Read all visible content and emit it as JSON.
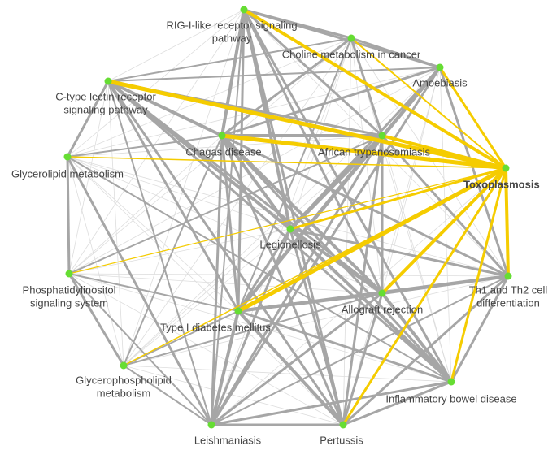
{
  "nodes": [
    {
      "label": [
        "RIG-I-like receptor signaling",
        "pathway"
      ]
    },
    {
      "label": [
        "Choline metabolism in cancer"
      ]
    },
    {
      "label": [
        "Amoebiasis"
      ]
    },
    {
      "label": [
        "C-type lectin receptor",
        "signaling pathway"
      ]
    },
    {
      "label": [
        "Chagas disease"
      ]
    },
    {
      "label": [
        "African trypanosomiasis"
      ]
    },
    {
      "label": [
        "Toxoplasmosis"
      ]
    },
    {
      "label": [
        "Glycerolipid metabolism"
      ]
    },
    {
      "label": [
        "Legionellosis"
      ]
    },
    {
      "label": [
        "Phosphatidylinositol",
        "signaling system"
      ]
    },
    {
      "label": [
        "Th1 and Th2 cell",
        "differentiation"
      ]
    },
    {
      "label": [
        "Allograft rejection"
      ]
    },
    {
      "label": [
        "Type I diabetes mellitus"
      ]
    },
    {
      "label": [
        "Glycerophospholipid",
        "metabolism"
      ]
    },
    {
      "label": [
        "Inflammatory bowel disease"
      ]
    },
    {
      "label": [
        "Leishmaniasis"
      ]
    },
    {
      "label": [
        "Pertussis"
      ]
    }
  ]
}
